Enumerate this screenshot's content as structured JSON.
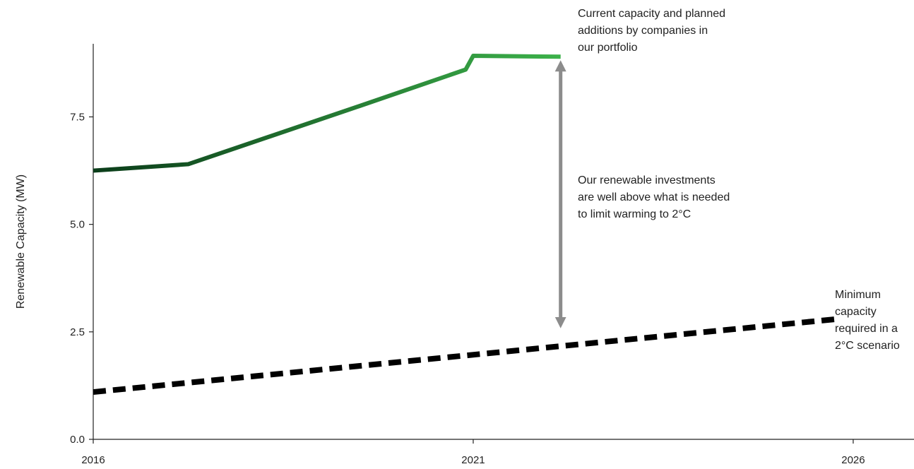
{
  "chart_data": {
    "type": "line",
    "ylabel": "Renewable Capacity (MW)",
    "xlim": [
      2016,
      2026.8
    ],
    "ylim": [
      0,
      9.2
    ],
    "x_ticks": [
      "2016",
      "2021",
      "2026"
    ],
    "y_ticks": [
      "0.0",
      "2.5",
      "5.0",
      "7.5"
    ],
    "grid": false,
    "series": [
      {
        "style": "solid-green-gradient",
        "color_start": "#0b3d1a",
        "color_end": "#3cb14a",
        "x": [
          2016,
          2017.25,
          2019.5,
          2020.9,
          2021.0,
          2022.15
        ],
        "y": [
          6.25,
          6.4,
          7.75,
          8.6,
          8.92,
          8.9
        ]
      },
      {
        "style": "dashed-black",
        "color": "#000000",
        "x": [
          2016,
          2025.8
        ],
        "y": [
          1.1,
          2.8
        ]
      }
    ],
    "annotations": [
      {
        "text": "Current capacity and planned\nadditions by companies in\nour portfolio"
      },
      {
        "text": "Our renewable investments\nare well above what is needed\nto limit warming to 2°C"
      },
      {
        "text": "Minimum\ncapacity\nrequired in a\n2°C scenario"
      }
    ],
    "gap_arrow": {
      "x": 2022.15,
      "y_from": 2.55,
      "y_to": 8.85,
      "color": "#8c8c8c"
    }
  }
}
